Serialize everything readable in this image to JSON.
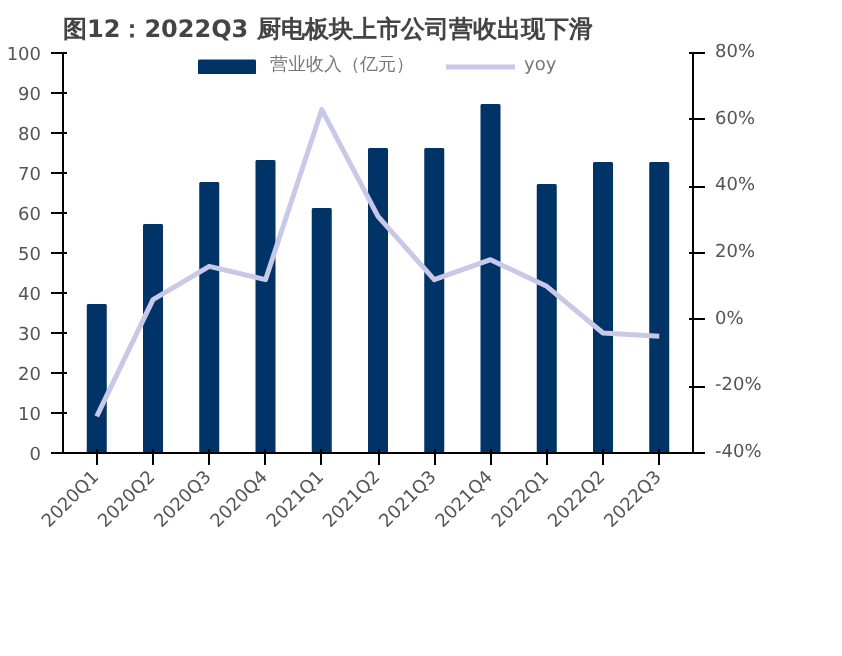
{
  "chart_data": {
    "type": "bar",
    "title": "图12：2022Q3 厨电板块上市公司营收出现下滑",
    "categories": [
      "2020Q1",
      "2020Q2",
      "2020Q3",
      "2020Q4",
      "2021Q1",
      "2021Q2",
      "2021Q3",
      "2021Q4",
      "2022Q1",
      "2022Q2",
      "2022Q3"
    ],
    "series": [
      {
        "name": "营业收入（亿元）",
        "color": "#003366",
        "values": [
          37,
          57,
          67.5,
          73,
          61,
          76,
          76,
          87,
          67,
          72.5,
          72.5
        ]
      },
      {
        "name": "yoy",
        "type": "line",
        "axis": "y2",
        "color": "#c8c8e8",
        "values": [
          -29,
          6,
          16,
          12,
          63,
          31,
          12,
          18,
          10,
          -4,
          -5
        ]
      }
    ],
    "ylim": [
      0,
      100
    ],
    "yticks": [
      0,
      10,
      20,
      30,
      40,
      50,
      60,
      70,
      80,
      90,
      100
    ],
    "y2lim": [
      -40,
      80
    ],
    "y2ticks": [
      {
        "value": -40,
        "label": "-40%"
      },
      {
        "value": -20,
        "label": "-20%"
      },
      {
        "value": 0,
        "label": "0%"
      },
      {
        "value": 20,
        "label": "20%"
      },
      {
        "value": 40,
        "label": "40%"
      },
      {
        "value": 60,
        "label": "60%"
      },
      {
        "value": 80,
        "label": "80%"
      }
    ],
    "legend": "top",
    "grid": false
  }
}
